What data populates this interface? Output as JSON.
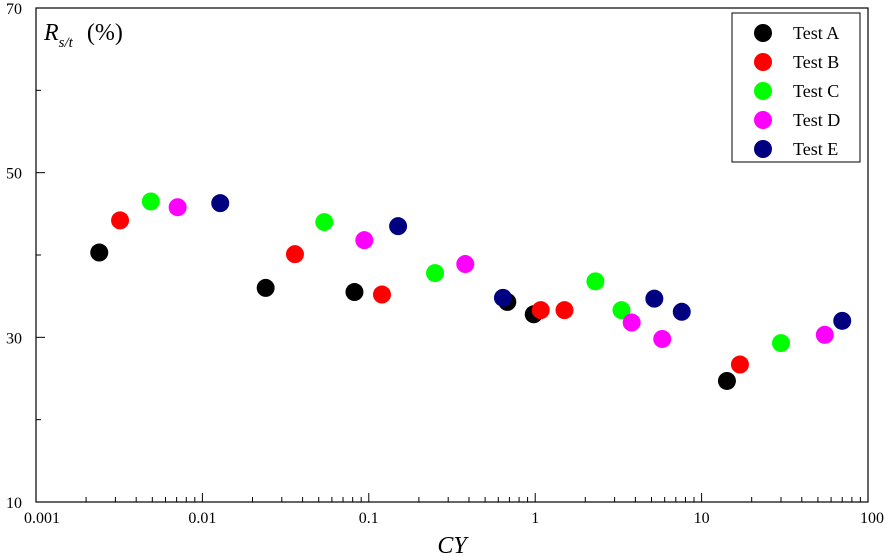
{
  "chart_data": {
    "type": "scatter",
    "xscale": "log",
    "xlim": [
      0.001,
      100
    ],
    "ylim": [
      10,
      70
    ],
    "xticks": [
      "0.001",
      "0.01",
      "0.1",
      "1",
      "10",
      "100"
    ],
    "yticks": [
      "10",
      "30",
      "50",
      "70"
    ],
    "xlabel": "CY",
    "ylabel": {
      "main": "R",
      "subscript": "s/t",
      "unit": "(%)"
    },
    "legend_position": "top-right",
    "series": [
      {
        "name": "Test A",
        "color": "#000000",
        "points": [
          [
            0.0024,
            40.3
          ],
          [
            0.024,
            36.0
          ],
          [
            0.082,
            35.5
          ],
          [
            0.68,
            34.3
          ],
          [
            0.98,
            32.8
          ],
          [
            14.2,
            24.7
          ]
        ]
      },
      {
        "name": "Test B",
        "color": "#ff0000",
        "points": [
          [
            0.0032,
            44.2
          ],
          [
            0.036,
            40.1
          ],
          [
            0.12,
            35.2
          ],
          [
            1.08,
            33.3
          ],
          [
            1.5,
            33.3
          ],
          [
            17.0,
            26.7
          ]
        ]
      },
      {
        "name": "Test C",
        "color": "#00ff00",
        "points": [
          [
            0.0049,
            46.5
          ],
          [
            0.054,
            44.0
          ],
          [
            0.25,
            37.8
          ],
          [
            2.3,
            36.8
          ],
          [
            3.3,
            33.3
          ],
          [
            30.0,
            29.3
          ]
        ]
      },
      {
        "name": "Test D",
        "color": "#ff00ff",
        "points": [
          [
            0.0071,
            45.8
          ],
          [
            0.094,
            41.8
          ],
          [
            0.38,
            38.9
          ],
          [
            3.8,
            31.8
          ],
          [
            5.8,
            29.8
          ],
          [
            55.0,
            30.3
          ]
        ]
      },
      {
        "name": "Test E",
        "color": "#000080",
        "points": [
          [
            0.0128,
            46.3
          ],
          [
            0.15,
            43.5
          ],
          [
            0.64,
            34.8
          ],
          [
            5.2,
            34.7
          ],
          [
            7.6,
            33.1
          ],
          [
            70.0,
            32.0
          ]
        ]
      }
    ]
  }
}
